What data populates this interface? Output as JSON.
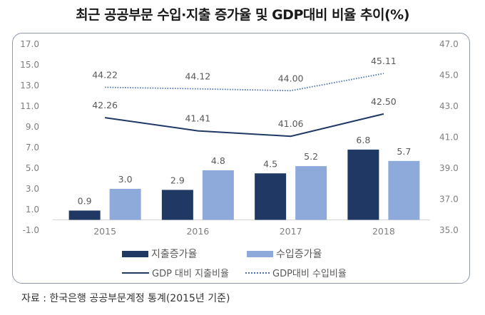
{
  "chart_data": {
    "type": "bar+line",
    "title": "최근 공공부문 수입·지출 증가율 및 GDP대비 비율 추이(%)",
    "categories": [
      "2015",
      "2016",
      "2017",
      "2018"
    ],
    "y_left": {
      "ylim": [
        -1.0,
        17.0
      ],
      "ticks": [
        "17.0",
        "15.0",
        "13.0",
        "11.0",
        "9.0",
        "7.0",
        "5.0",
        "3.0",
        "1.0",
        "-1.0"
      ]
    },
    "y_right": {
      "ylim": [
        35.0,
        47.0
      ],
      "ticks": [
        "47.0",
        "45.0",
        "43.0",
        "41.0",
        "39.0",
        "37.0",
        "35.0"
      ]
    },
    "series": [
      {
        "name": "지출증가율",
        "kind": "bar",
        "axis": "left",
        "color": "#1f3864",
        "values": [
          0.9,
          2.9,
          4.5,
          6.8
        ],
        "labels": [
          "0.9",
          "2.9",
          "4.5",
          "6.8"
        ]
      },
      {
        "name": "수입증가율",
        "kind": "bar",
        "axis": "left",
        "color": "#8eaadb",
        "values": [
          3.0,
          4.8,
          5.2,
          5.7
        ],
        "labels": [
          "3.0",
          "4.8",
          "5.2",
          "5.7"
        ]
      },
      {
        "name": "GDP 대비 지출비율",
        "kind": "line",
        "style": "solid",
        "axis": "right",
        "color": "#1f3864",
        "values": [
          42.26,
          41.41,
          41.06,
          42.5
        ],
        "labels": [
          "42.26",
          "41.41",
          "41.06",
          "42.50"
        ]
      },
      {
        "name": "GDP대비 수입비율",
        "kind": "line",
        "style": "dotted",
        "axis": "right",
        "color": "#4a6fb0",
        "values": [
          44.22,
          44.12,
          44.0,
          45.11
        ],
        "labels": [
          "44.22",
          "44.12",
          "44.00",
          "45.11"
        ]
      }
    ],
    "legend_position": "bottom",
    "grid": false
  },
  "source": "자료 : 한국은행 공공부문계정 통계(2015년 기준)"
}
